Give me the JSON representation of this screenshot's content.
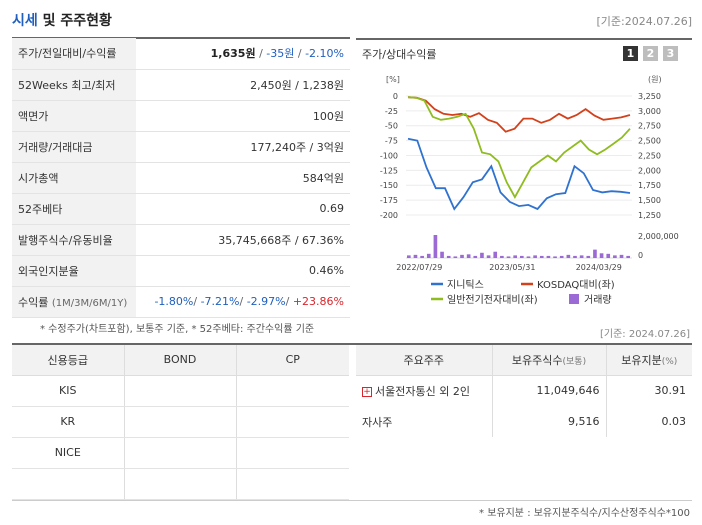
{
  "header": {
    "title_a": "시세",
    "title_b": " 및 주주현황",
    "date": "[기준:2024.07.26]"
  },
  "stock": {
    "rows": [
      {
        "key": "주가/전일대비/수익률",
        "price": "1,635원",
        "sep1": " / ",
        "chg": "-35원",
        "sep2": " / ",
        "pct": "-2.10%"
      },
      {
        "key": "52Weeks 최고/최저",
        "value": "2,450원 / 1,238원"
      },
      {
        "key": "액면가",
        "value": "100원"
      },
      {
        "key": "거래량/거래대금",
        "value": "177,240주 / 3억원"
      },
      {
        "key": "시가총액",
        "value": "584억원"
      },
      {
        "key": "52주베타",
        "value": "0.69"
      },
      {
        "key": "발행주식수/유동비율",
        "value": "35,745,668주 / 67.36%"
      },
      {
        "key": "외국인지분율",
        "value": "0.46%"
      },
      {
        "key": "수익률",
        "key_small": "(1M/3M/6M/1Y)",
        "r1": "-1.80%",
        "r2": "-7.21%",
        "r3": "-2.97%",
        "r4": "+23.86%"
      }
    ]
  },
  "chart_panel": {
    "title": "주가/상대수익률",
    "pages": [
      "1",
      "2",
      "3"
    ]
  },
  "chart_data": {
    "type": "line",
    "left_axis_unit": "[%]",
    "right_axis_unit": "(원)",
    "left_ticks": [
      "0",
      "-25",
      "-50",
      "-75",
      "-100",
      "-125",
      "-150",
      "-175",
      "-200"
    ],
    "left_tick_values": [
      0,
      -25,
      -50,
      -75,
      -100,
      -125,
      -150,
      -175,
      -200
    ],
    "right_ticks": [
      "3,250",
      "3,000",
      "2,750",
      "2,500",
      "2,250",
      "2,000",
      "1,750",
      "1,500",
      "1,250"
    ],
    "volume_ticks": [
      "2,000,000",
      "0"
    ],
    "x_ticks": [
      "2022/07/29",
      "2023/05/31",
      "2024/03/29"
    ],
    "x_tick_index": [
      2,
      16,
      29
    ],
    "ylim": [
      -200,
      5
    ],
    "series": [
      {
        "name": "지니틱스",
        "color": "#2f72d0",
        "values": [
          -72,
          -75,
          -120,
          -155,
          -155,
          -190,
          -170,
          -145,
          -140,
          -118,
          -162,
          -178,
          -185,
          -183,
          -190,
          -172,
          -165,
          -163,
          -118,
          -130,
          -158,
          -162,
          -160,
          -161,
          -163
        ]
      },
      {
        "name": "KOSDAQ대비(좌)",
        "color": "#d3401a",
        "values": [
          -2,
          -3,
          -8,
          -22,
          -30,
          -32,
          -30,
          -35,
          -29,
          -40,
          -45,
          -60,
          -55,
          -38,
          -38,
          -45,
          -40,
          -30,
          -38,
          -32,
          -22,
          -33,
          -40,
          -38,
          -36,
          -32
        ]
      },
      {
        "name": "일반전기전자대비(좌)",
        "color": "#8fbc1f",
        "values": [
          -2,
          -3,
          -8,
          -35,
          -40,
          -38,
          -35,
          -30,
          -55,
          -95,
          -98,
          -110,
          -145,
          -170,
          -145,
          -120,
          -110,
          -100,
          -110,
          -95,
          -85,
          -75,
          -90,
          -98,
          -90,
          -80,
          -70,
          -55
        ]
      },
      {
        "name": "거래량",
        "color": "#9b6ad4",
        "values": [
          0.25,
          0.3,
          0.2,
          0.4,
          2.2,
          0.6,
          0.2,
          0.15,
          0.3,
          0.35,
          0.2,
          0.5,
          0.25,
          0.6,
          0.2,
          0.15,
          0.25,
          0.2,
          0.15,
          0.25,
          0.2,
          0.2,
          0.15,
          0.2,
          0.3,
          0.2,
          0.25,
          0.2,
          0.8,
          0.45,
          0.4,
          0.25,
          0.3,
          0.2
        ]
      }
    ]
  },
  "notes": {
    "note1": "* 수정주가(차트포함), 보통주 기준, * 52주베타: 주간수익률 기준",
    "date": "[기준: 2024.07.26]",
    "note2": "* 보유지분 : 보유지분주식수/지수산정주식수*100"
  },
  "credit": {
    "headers": [
      "신용등급",
      "BOND",
      "CP"
    ],
    "rows": [
      [
        "KIS",
        "",
        ""
      ],
      [
        "KR",
        "",
        ""
      ],
      [
        "NICE",
        "",
        ""
      ],
      [
        "",
        "",
        ""
      ]
    ]
  },
  "holders": {
    "headers": [
      "주요주주",
      "보유주식수",
      "(보통)",
      "보유지분",
      "(%)"
    ],
    "rows": [
      {
        "name": "서울전자통신 외 2인",
        "shares": "11,049,646",
        "pct": "30.91",
        "expand": "+"
      },
      {
        "name": "자사주",
        "shares": "9,516",
        "pct": "0.03",
        "expand": ""
      }
    ]
  }
}
